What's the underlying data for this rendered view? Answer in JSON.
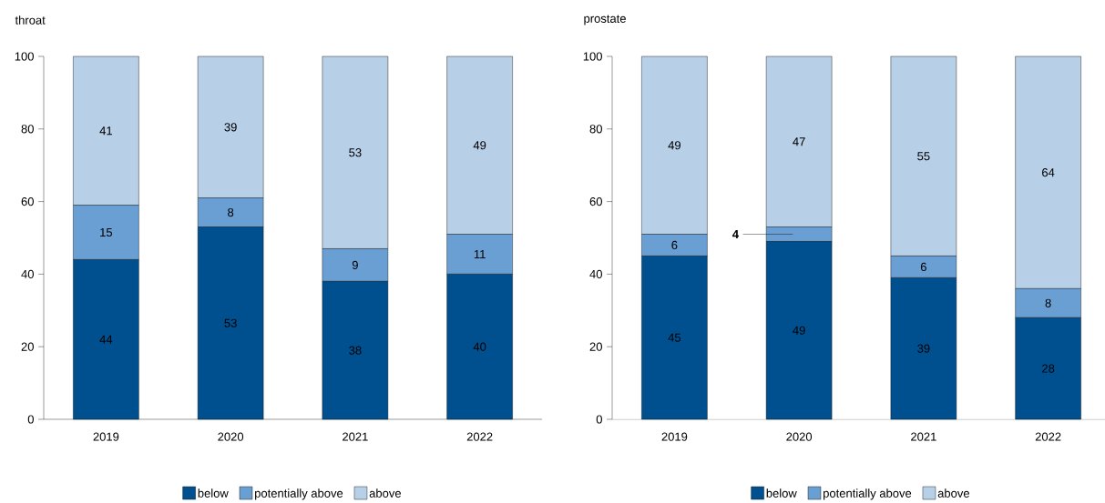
{
  "chart_data": [
    {
      "type": "bar",
      "title": "throat",
      "stacked": true,
      "categories": [
        "2019",
        "2020",
        "2021",
        "2022"
      ],
      "series": [
        {
          "name": "below",
          "color": "#00508f",
          "values": [
            44,
            53,
            38,
            40
          ]
        },
        {
          "name": "potentially above",
          "color": "#6a9fd3",
          "values": [
            15,
            8,
            9,
            11
          ]
        },
        {
          "name": "above",
          "color": "#b8cfe8",
          "values": [
            41,
            39,
            53,
            49
          ]
        }
      ],
      "ylim": [
        0,
        100
      ],
      "yticks": [
        0,
        20,
        40,
        60,
        80,
        100
      ],
      "data_labels": true,
      "legend": "bottom"
    },
    {
      "type": "bar",
      "title": "prostate",
      "stacked": true,
      "categories": [
        "2019",
        "2020",
        "2021",
        "2022"
      ],
      "series": [
        {
          "name": "below",
          "color": "#00508f",
          "values": [
            45,
            49,
            39,
            28
          ]
        },
        {
          "name": "potentially above",
          "color": "#6a9fd3",
          "values": [
            6,
            4,
            6,
            8
          ]
        },
        {
          "name": "above",
          "color": "#b8cfe8",
          "values": [
            49,
            47,
            55,
            64
          ]
        }
      ],
      "ylim": [
        0,
        100
      ],
      "yticks": [
        0,
        20,
        40,
        60,
        80,
        100
      ],
      "data_labels": true,
      "legend": "bottom"
    }
  ]
}
